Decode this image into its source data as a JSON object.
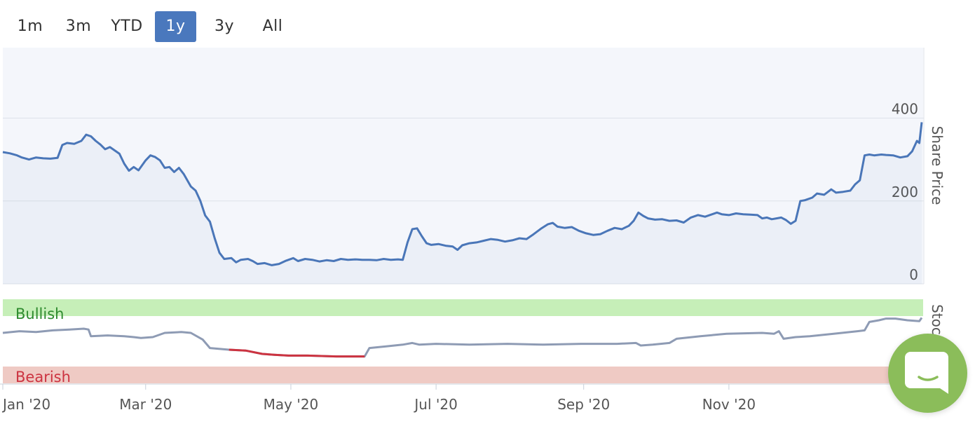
{
  "range_selector": {
    "buttons": [
      "1m",
      "3m",
      "YTD",
      "1y",
      "3y",
      "All"
    ],
    "active": "1y"
  },
  "colors": {
    "line": "#4a76b8",
    "plot_bg": "#f4f6fb",
    "grid": "#dde2ea",
    "bullish_band": "#c6efb8",
    "bearish_band": "#efcac4",
    "bullish_text": "#2e8b2e",
    "bearish_text": "#cc3340",
    "indicator_line": "#8e9bb4",
    "indicator_bearish_line": "#cc3340",
    "chat_widget": "#8bbd5a"
  },
  "icons": {
    "chat": "chat-bubble-icon"
  },
  "chart_data": [
    {
      "type": "line",
      "ylabel": "Share Price",
      "ylim": [
        0,
        570
      ],
      "yticks": [
        0,
        200,
        400
      ],
      "series": [
        {
          "points": [
            [
              "2020-01-01",
              318
            ],
            [
              "2020-01-04",
              315
            ],
            [
              "2020-01-07",
              310
            ],
            [
              "2020-01-09",
              305
            ],
            [
              "2020-01-12",
              300
            ],
            [
              "2020-01-15",
              305
            ],
            [
              "2020-01-18",
              303
            ],
            [
              "2020-01-21",
              302
            ],
            [
              "2020-01-24",
              304
            ],
            [
              "2020-01-26",
              335
            ],
            [
              "2020-01-28",
              340
            ],
            [
              "2020-01-31",
              338
            ],
            [
              "2020-02-03",
              345
            ],
            [
              "2020-02-05",
              360
            ],
            [
              "2020-02-07",
              356
            ],
            [
              "2020-02-09",
              345
            ],
            [
              "2020-02-11",
              336
            ],
            [
              "2020-02-13",
              325
            ],
            [
              "2020-02-15",
              330
            ],
            [
              "2020-02-17",
              322
            ],
            [
              "2020-02-19",
              314
            ],
            [
              "2020-02-21",
              290
            ],
            [
              "2020-02-23",
              273
            ],
            [
              "2020-02-25",
              282
            ],
            [
              "2020-02-27",
              274
            ],
            [
              "2020-03-01",
              298
            ],
            [
              "2020-03-03",
              310
            ],
            [
              "2020-03-05",
              306
            ],
            [
              "2020-03-07",
              298
            ],
            [
              "2020-03-09",
              280
            ],
            [
              "2020-03-11",
              282
            ],
            [
              "2020-03-13",
              270
            ],
            [
              "2020-03-15",
              280
            ],
            [
              "2020-03-17",
              265
            ],
            [
              "2020-03-20",
              235
            ],
            [
              "2020-03-22",
              225
            ],
            [
              "2020-03-24",
              200
            ],
            [
              "2020-03-26",
              165
            ],
            [
              "2020-03-28",
              150
            ],
            [
              "2020-03-30",
              110
            ],
            [
              "2020-04-01",
              75
            ],
            [
              "2020-04-03",
              60
            ],
            [
              "2020-04-06",
              62
            ],
            [
              "2020-04-08",
              52
            ],
            [
              "2020-04-10",
              58
            ],
            [
              "2020-04-13",
              60
            ],
            [
              "2020-04-15",
              55
            ],
            [
              "2020-04-17",
              48
            ],
            [
              "2020-04-20",
              50
            ],
            [
              "2020-04-23",
              45
            ],
            [
              "2020-04-26",
              48
            ],
            [
              "2020-04-29",
              56
            ],
            [
              "2020-05-02",
              62
            ],
            [
              "2020-05-04",
              55
            ],
            [
              "2020-05-07",
              60
            ],
            [
              "2020-05-10",
              58
            ],
            [
              "2020-05-13",
              54
            ],
            [
              "2020-05-16",
              57
            ],
            [
              "2020-05-19",
              55
            ],
            [
              "2020-05-22",
              60
            ],
            [
              "2020-05-25",
              58
            ],
            [
              "2020-05-28",
              59
            ],
            [
              "2020-05-31",
              58
            ],
            [
              "2020-06-03",
              58
            ],
            [
              "2020-06-06",
              57
            ],
            [
              "2020-06-09",
              60
            ],
            [
              "2020-06-12",
              58
            ],
            [
              "2020-06-15",
              59
            ],
            [
              "2020-06-17",
              58
            ],
            [
              "2020-06-19",
              100
            ],
            [
              "2020-06-21",
              132
            ],
            [
              "2020-06-23",
              134
            ],
            [
              "2020-06-25",
              115
            ],
            [
              "2020-06-27",
              98
            ],
            [
              "2020-06-29",
              94
            ],
            [
              "2020-07-02",
              96
            ],
            [
              "2020-07-05",
              92
            ],
            [
              "2020-07-08",
              90
            ],
            [
              "2020-07-10",
              82
            ],
            [
              "2020-07-12",
              93
            ],
            [
              "2020-07-15",
              98
            ],
            [
              "2020-07-18",
              100
            ],
            [
              "2020-07-21",
              104
            ],
            [
              "2020-07-24",
              108
            ],
            [
              "2020-07-27",
              106
            ],
            [
              "2020-07-30",
              102
            ],
            [
              "2020-08-02",
              105
            ],
            [
              "2020-08-05",
              110
            ],
            [
              "2020-08-08",
              108
            ],
            [
              "2020-08-11",
              120
            ],
            [
              "2020-08-14",
              133
            ],
            [
              "2020-08-17",
              144
            ],
            [
              "2020-08-19",
              147
            ],
            [
              "2020-08-21",
              138
            ],
            [
              "2020-08-24",
              135
            ],
            [
              "2020-08-27",
              137
            ],
            [
              "2020-08-30",
              128
            ],
            [
              "2020-09-02",
              122
            ],
            [
              "2020-09-05",
              118
            ],
            [
              "2020-09-08",
              120
            ],
            [
              "2020-09-11",
              128
            ],
            [
              "2020-09-14",
              135
            ],
            [
              "2020-09-17",
              132
            ],
            [
              "2020-09-20",
              140
            ],
            [
              "2020-09-22",
              152
            ],
            [
              "2020-09-24",
              172
            ],
            [
              "2020-09-26",
              164
            ],
            [
              "2020-09-28",
              158
            ],
            [
              "2020-10-01",
              155
            ],
            [
              "2020-10-04",
              156
            ],
            [
              "2020-10-07",
              152
            ],
            [
              "2020-10-10",
              153
            ],
            [
              "2020-10-13",
              148
            ],
            [
              "2020-10-16",
              160
            ],
            [
              "2020-10-19",
              166
            ],
            [
              "2020-10-22",
              162
            ],
            [
              "2020-10-25",
              168
            ],
            [
              "2020-10-27",
              172
            ],
            [
              "2020-10-29",
              168
            ],
            [
              "2020-11-01",
              166
            ],
            [
              "2020-11-04",
              170
            ],
            [
              "2020-11-07",
              168
            ],
            [
              "2020-11-10",
              167
            ],
            [
              "2020-11-13",
              166
            ],
            [
              "2020-11-15",
              158
            ],
            [
              "2020-11-17",
              160
            ],
            [
              "2020-11-19",
              156
            ],
            [
              "2020-11-21",
              158
            ],
            [
              "2020-11-23",
              160
            ],
            [
              "2020-11-25",
              154
            ],
            [
              "2020-11-27",
              145
            ],
            [
              "2020-11-29",
              152
            ],
            [
              "2020-12-01",
              200
            ],
            [
              "2020-12-03",
              202
            ],
            [
              "2020-12-06",
              208
            ],
            [
              "2020-12-08",
              218
            ],
            [
              "2020-12-11",
              215
            ],
            [
              "2020-12-14",
              228
            ],
            [
              "2020-12-16",
              220
            ],
            [
              "2020-12-19",
              222
            ],
            [
              "2020-12-22",
              225
            ],
            [
              "2020-12-24",
              240
            ],
            [
              "2020-12-26",
              250
            ],
            [
              "2020-12-28",
              310
            ],
            [
              "2020-12-30",
              312
            ],
            [
              "2021-01-01",
              310
            ],
            [
              "2021-01-04",
              312
            ],
            [
              "2021-01-06",
              311
            ],
            [
              "2021-01-09",
              310
            ],
            [
              "2021-01-12",
              305
            ],
            [
              "2021-01-15",
              308
            ],
            [
              "2021-01-17",
              320
            ],
            [
              "2021-01-19",
              345
            ],
            [
              "2021-01-20",
              340
            ],
            [
              "2021-01-21",
              390
            ]
          ]
        }
      ],
      "x_ticks": [
        {
          "date": "2020-01-01",
          "label": "Jan '20"
        },
        {
          "date": "2020-03-01",
          "label": "Mar '20"
        },
        {
          "date": "2020-05-01",
          "label": "May '20"
        },
        {
          "date": "2020-07-01",
          "label": "Jul '20"
        },
        {
          "date": "2020-09-01",
          "label": "Sep '20"
        },
        {
          "date": "2020-11-01",
          "label": "Nov '20"
        }
      ],
      "grid": true
    },
    {
      "type": "line",
      "ylabel": "Stoc",
      "ylim": [
        0,
        100
      ],
      "bands": [
        {
          "label": "Bullish",
          "from": 80,
          "to": 100
        },
        {
          "label": "Bearish",
          "from": 0,
          "to": 20
        }
      ],
      "series": [
        {
          "points": [
            [
              "2020-01-01",
              60
            ],
            [
              "2020-01-08",
              62
            ],
            [
              "2020-01-15",
              61
            ],
            [
              "2020-01-22",
              63
            ],
            [
              "2020-01-29",
              64
            ],
            [
              "2020-02-04",
              65
            ],
            [
              "2020-02-06",
              64
            ],
            [
              "2020-02-07",
              56
            ],
            [
              "2020-02-14",
              57
            ],
            [
              "2020-02-21",
              56
            ],
            [
              "2020-02-25",
              55
            ],
            [
              "2020-02-28",
              54
            ],
            [
              "2020-03-04",
              55
            ],
            [
              "2020-03-09",
              60
            ],
            [
              "2020-03-16",
              61
            ],
            [
              "2020-03-20",
              60
            ],
            [
              "2020-03-25",
              52
            ],
            [
              "2020-03-28",
              42
            ],
            [
              "2020-04-05",
              40
            ],
            [
              "2020-04-12",
              39
            ],
            [
              "2020-04-19",
              35
            ],
            [
              "2020-04-24",
              34
            ],
            [
              "2020-04-30",
              33
            ],
            [
              "2020-05-08",
              33
            ],
            [
              "2020-05-20",
              32
            ],
            [
              "2020-06-01",
              32
            ],
            [
              "2020-06-03",
              42
            ],
            [
              "2020-06-10",
              44
            ],
            [
              "2020-06-17",
              46
            ],
            [
              "2020-06-21",
              48
            ],
            [
              "2020-06-24",
              46
            ],
            [
              "2020-07-01",
              47
            ],
            [
              "2020-07-15",
              46
            ],
            [
              "2020-07-31",
              47
            ],
            [
              "2020-08-15",
              46
            ],
            [
              "2020-08-31",
              47
            ],
            [
              "2020-09-15",
              47
            ],
            [
              "2020-09-23",
              48
            ],
            [
              "2020-09-25",
              45
            ],
            [
              "2020-09-30",
              46
            ],
            [
              "2020-10-07",
              48
            ],
            [
              "2020-10-10",
              53
            ],
            [
              "2020-10-20",
              56
            ],
            [
              "2020-10-31",
              59
            ],
            [
              "2020-11-15",
              60
            ],
            [
              "2020-11-20",
              59
            ],
            [
              "2020-11-22",
              62
            ],
            [
              "2020-11-24",
              53
            ],
            [
              "2020-11-29",
              55
            ],
            [
              "2020-12-05",
              56
            ],
            [
              "2020-12-15",
              59
            ],
            [
              "2020-12-25",
              62
            ],
            [
              "2020-12-28",
              63
            ],
            [
              "2020-12-30",
              73
            ],
            [
              "2021-01-03",
              75
            ],
            [
              "2021-01-06",
              77
            ],
            [
              "2021-01-10",
              77
            ],
            [
              "2021-01-15",
              75
            ],
            [
              "2021-01-20",
              74
            ],
            [
              "2021-01-21",
              78
            ]
          ],
          "bearish_segment": [
            "2020-04-05",
            "2020-06-01"
          ]
        }
      ]
    }
  ]
}
